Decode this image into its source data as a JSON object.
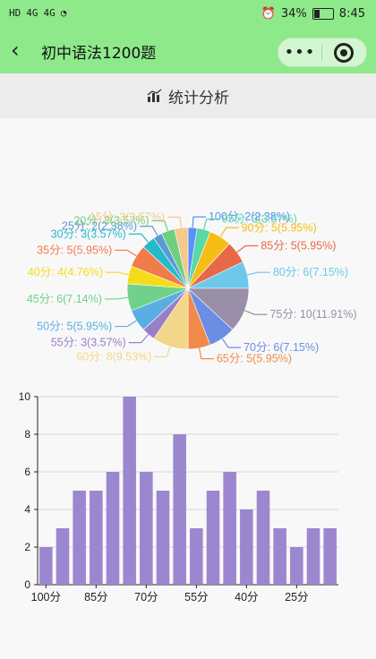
{
  "status_bar": {
    "left_icons": [
      "HD",
      "4G",
      "4G",
      "wifi"
    ],
    "battery": "34%",
    "time": "8:45",
    "icons": [
      "alarm-icon",
      "battery-icon"
    ]
  },
  "nav": {
    "title": "初中语法1200题",
    "back_icon": "back-chevron-icon",
    "more_icon": "more-dots-icon",
    "close_icon": "target-icon"
  },
  "section": {
    "title": "统计分析",
    "icon": "bar-chart-icon"
  },
  "chart_data": [
    {
      "type": "pie",
      "slices": [
        {
          "label": "100分",
          "count": 2,
          "percent": "2.38%",
          "color": "#5b8ff9"
        },
        {
          "label": "95分",
          "count": 3,
          "percent": "3.57%",
          "color": "#5ad8a6"
        },
        {
          "label": "90分",
          "count": 5,
          "percent": "5.95%",
          "color": "#f6bd16"
        },
        {
          "label": "85分",
          "count": 5,
          "percent": "5.95%",
          "color": "#e8684a"
        },
        {
          "label": "80分",
          "count": 6,
          "percent": "7.15%",
          "color": "#6dc8ec"
        },
        {
          "label": "75分",
          "count": 10,
          "percent": "11.91%",
          "color": "#9a8fa8"
        },
        {
          "label": "70分",
          "count": 6,
          "percent": "7.15%",
          "color": "#6b8de3"
        },
        {
          "label": "65分",
          "count": 5,
          "percent": "5.95%",
          "color": "#f08a4b"
        },
        {
          "label": "60分",
          "count": 8,
          "percent": "9.53%",
          "color": "#f2d788"
        },
        {
          "label": "55分",
          "count": 3,
          "percent": "3.57%",
          "color": "#9a7fc7"
        },
        {
          "label": "50分",
          "count": 5,
          "percent": "5.95%",
          "color": "#5aaee4"
        },
        {
          "label": "45分",
          "count": 6,
          "percent": "7.14%",
          "color": "#6fd18a"
        },
        {
          "label": "40分",
          "count": 4,
          "percent": "4.76%",
          "color": "#f5dc1a"
        },
        {
          "label": "35分",
          "count": 5,
          "percent": "5.95%",
          "color": "#f07b4b"
        },
        {
          "label": "30分",
          "count": 3,
          "percent": "3.57%",
          "color": "#27b9c9"
        },
        {
          "label": "25分",
          "count": 2,
          "percent": "2.38%",
          "color": "#5b9bd5"
        },
        {
          "label": "20分",
          "count": 3,
          "percent": "3.57%",
          "color": "#6fcf7e"
        },
        {
          "label": "15分",
          "count": 3,
          "percent": "3.57%",
          "color": "#f4c98a"
        }
      ]
    },
    {
      "type": "bar",
      "categories": [
        "100分",
        "95分",
        "90分",
        "85分",
        "80分",
        "75分",
        "70分",
        "65分",
        "60分",
        "55分",
        "50分",
        "45分",
        "40分",
        "35分",
        "30分",
        "25分",
        "20分",
        "15分"
      ],
      "values": [
        2,
        3,
        5,
        5,
        6,
        10,
        6,
        5,
        8,
        3,
        5,
        6,
        4,
        5,
        3,
        2,
        3,
        3
      ],
      "shown_x_ticks": [
        "100分",
        "85分",
        "70分",
        "55分",
        "40分",
        "25分"
      ],
      "y_ticks": [
        "0",
        "2",
        "4",
        "6",
        "8",
        "10"
      ],
      "ylim": [
        0,
        10
      ],
      "grid": true,
      "bar_color": "#9b87cf"
    }
  ]
}
